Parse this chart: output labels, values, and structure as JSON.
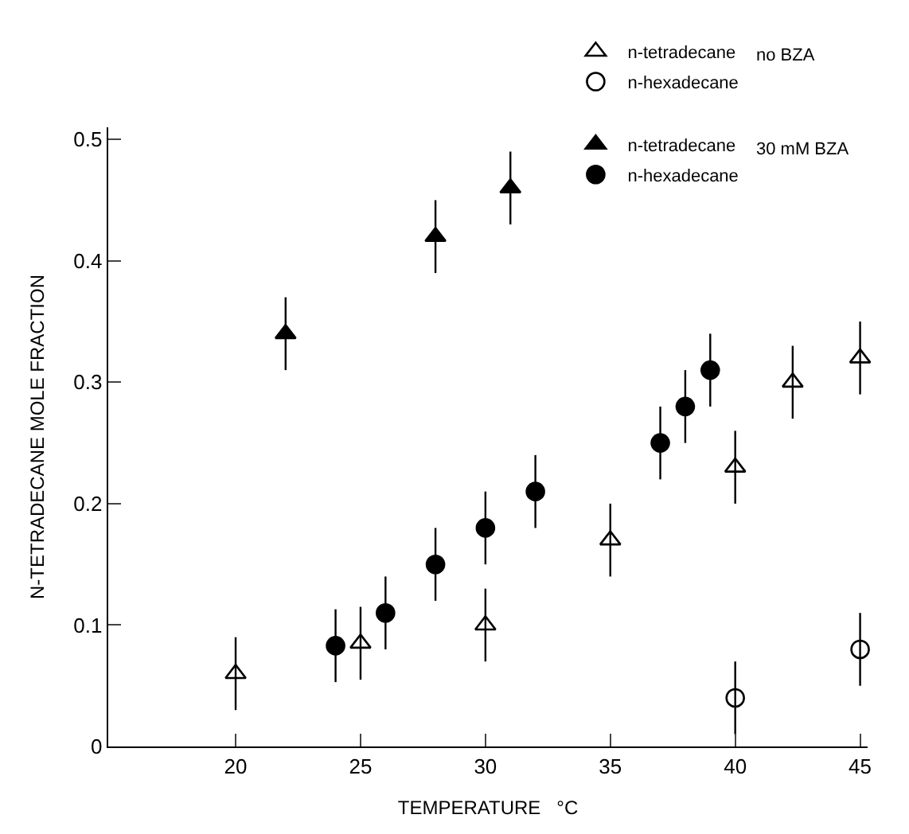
{
  "chart_data": {
    "type": "scatter",
    "xlabel": "TEMPERATURE   °C",
    "ylabel": "N-TETRADECANE MOLE FRACTION",
    "xlim": [
      14.9,
      45.3
    ],
    "ylim": [
      0,
      0.51
    ],
    "xticks": [
      20,
      25,
      30,
      35,
      40,
      45
    ],
    "yticks": [
      0,
      0.1,
      0.2,
      0.3,
      0.4,
      0.5
    ],
    "legend": "top right",
    "series": [
      {
        "name": "n-tetradecane",
        "color": "#000000",
        "marker": "triangle-open",
        "x": [
          20,
          25,
          30,
          35,
          40,
          42.3,
          45
        ],
        "values": [
          0.06,
          0.085,
          0.1,
          0.17,
          0.23,
          0.3,
          0.32
        ],
        "errors": [
          0.03,
          0.03,
          0.03,
          0.03,
          0.03,
          0.03,
          0.03
        ]
      },
      {
        "name": "n-hexadecane",
        "color": "#000000",
        "marker": "circle-open",
        "x": [
          40,
          45
        ],
        "values": [
          0.04,
          0.08
        ],
        "errors": [
          0.03,
          0.03
        ]
      },
      {
        "name": "n-tetradecane",
        "color": "#000000",
        "marker": "triangle",
        "x": [
          22,
          28,
          31
        ],
        "values": [
          0.34,
          0.42,
          0.46
        ],
        "errors": [
          0.03,
          0.03,
          0.03
        ]
      },
      {
        "name": "n-hexadecane",
        "color": "#000000",
        "marker": "circle",
        "x": [
          24,
          26,
          28,
          30,
          32,
          37,
          38,
          39
        ],
        "values": [
          0.083,
          0.11,
          0.15,
          0.18,
          0.21,
          0.25,
          0.28,
          0.31
        ],
        "errors": [
          0.03,
          0.03,
          0.03,
          0.03,
          0.03,
          0.03,
          0.03,
          0.03
        ]
      }
    ],
    "annotations": [
      "no BZA",
      "30 mM BZA"
    ]
  }
}
